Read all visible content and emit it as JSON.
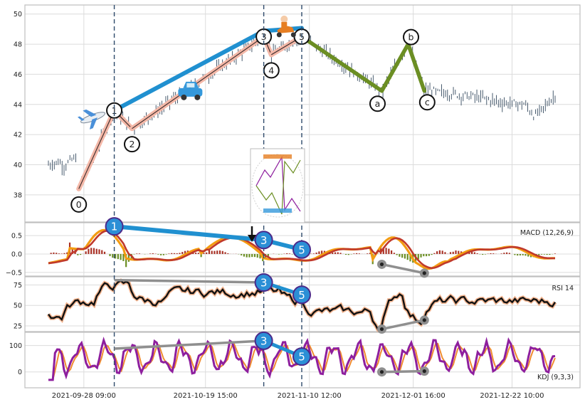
{
  "chart_data": [
    {
      "type": "line",
      "panel": "price",
      "description_free": true,
      "ylim": [
        36.2,
        50.6
      ],
      "yticks": [
        "38",
        "40",
        "42",
        "44",
        "46",
        "48",
        "50"
      ],
      "xticks": [
        "2021-09-28 09:00",
        "2021-10-19 15:00",
        "2021-11-10 12:00",
        "2021-12-01 16:00",
        "2021-12-22 10:00"
      ],
      "grid": true,
      "wave_points": [
        {
          "label": "0",
          "t": 0.06,
          "y": 38.4
        },
        {
          "label": "1",
          "t": 0.13,
          "y": 43.6
        },
        {
          "label": "2",
          "t": 0.165,
          "y": 42.4
        },
        {
          "label": "3",
          "t": 0.425,
          "y": 48.5
        },
        {
          "label": "4",
          "t": 0.44,
          "y": 47.3
        },
        {
          "label": "5",
          "t": 0.5,
          "y": 48.5
        },
        {
          "label": "a",
          "t": 0.658,
          "y": 44.9
        },
        {
          "label": "b",
          "t": 0.71,
          "y": 48.0
        },
        {
          "label": "c",
          "t": 0.742,
          "y": 44.9
        }
      ],
      "trend_line": {
        "from": "1",
        "to": "5"
      }
    },
    {
      "type": "line",
      "panel": "macd",
      "label": "MACD (12,26,9)",
      "yticks": [
        "0.5",
        "0.0",
        "−0.5"
      ],
      "ylim": [
        -0.6,
        0.85
      ],
      "divergence_points": [
        {
          "label": "1",
          "y": 0.75
        },
        {
          "label": "3",
          "y": 0.38
        },
        {
          "label": "5",
          "y": 0.12
        }
      ]
    },
    {
      "type": "line",
      "panel": "rsi",
      "label": "RSI 14",
      "yticks": [
        "75",
        "50",
        "25"
      ],
      "ylim": [
        18,
        85
      ],
      "divergence_points": [
        {
          "label": "3",
          "y": 78
        },
        {
          "label": "5",
          "y": 63
        }
      ]
    },
    {
      "type": "line",
      "panel": "kdj",
      "label": "KDJ (9,3,3)",
      "yticks": [
        "100",
        "0"
      ],
      "ylim": [
        -60,
        150
      ],
      "divergence_points": [
        {
          "label": "3",
          "y": 118
        },
        {
          "label": "5",
          "y": 58
        }
      ]
    }
  ],
  "colors": {
    "candle": "#34495e",
    "impulse_wave": "#f4b8a8",
    "corrective_wave": "#6b8e23",
    "trend_line": "#2090d0",
    "macd_line": "#f39c12",
    "signal_line": "#c0392b",
    "hist_pos": "#a93226",
    "hist_neg": "#6b8e23",
    "rsi_line": "#111111",
    "kdj_k": "#8e1f9e",
    "kdj_d": "#f08c30",
    "marker_fill": "#2b8fd6",
    "marker_ring": "#4b2a8a",
    "divergence_grey": "#8f8f8f"
  },
  "icons": [
    "airplane-icon",
    "car-icon",
    "scooter-icon",
    "elliott-wave-pattern-icon"
  ]
}
